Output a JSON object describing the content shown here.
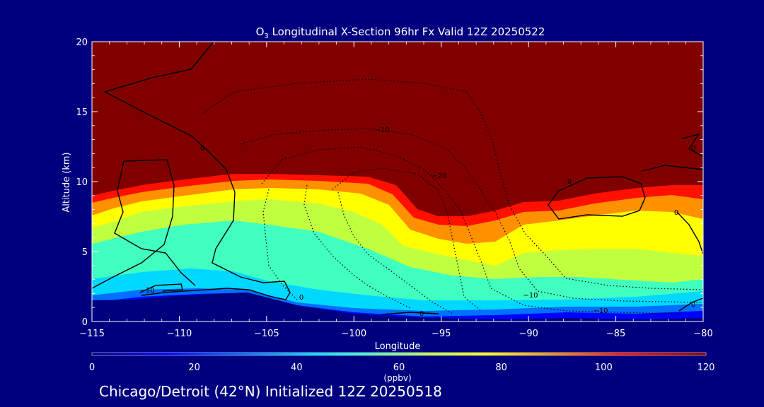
{
  "chart_data": {
    "type": "heatmap",
    "title": "O3 Longitudinal X-Section 96hr  Fx Valid 12Z 20250522",
    "title_parts": {
      "species": "O",
      "subscript": "3",
      "rest": " Longitudinal X-Section 96hr  Fx Valid 12Z 20250522"
    },
    "xlabel": "Longitude",
    "ylabel": "Altitude (km)",
    "xlim": [
      -115,
      -80
    ],
    "ylim": [
      0,
      20
    ],
    "x_ticks": [
      -115,
      -110,
      -105,
      -100,
      -95,
      -90,
      -85,
      -80
    ],
    "x_tick_labels": [
      "−115",
      "−110",
      "−105",
      "−100",
      "−95",
      "−90",
      "−85",
      "−80"
    ],
    "y_ticks": [
      0,
      5,
      10,
      15,
      20
    ],
    "y_tick_labels": [
      "0",
      "5",
      "10",
      "15",
      "20"
    ],
    "colorbar": {
      "label": "(ppbv)",
      "range": [
        0,
        120
      ],
      "ticks": [
        0,
        20,
        40,
        60,
        80,
        100,
        120
      ],
      "tick_labels": [
        "0",
        "20",
        "40",
        "60",
        "80",
        "100",
        "120"
      ]
    },
    "contour_labels": [
      "0",
      "−10",
      "−10",
      "−20",
      "0",
      "0",
      "−10",
      "0",
      "0",
      "−10",
      "0",
      "0"
    ],
    "grid": false,
    "legend": "none"
  },
  "footer": {
    "caption": "Chicago/Detroit (42°N) Initialized 12Z 20250518"
  }
}
